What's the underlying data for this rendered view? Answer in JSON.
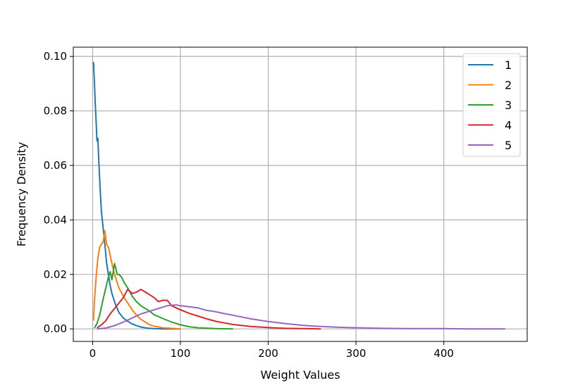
{
  "chart_data": {
    "type": "line",
    "title": "",
    "xlabel": "Weight Values",
    "ylabel": "Frequency Density",
    "xlim": [
      -22,
      495
    ],
    "ylim": [
      -0.0046,
      0.1034
    ],
    "xticks": [
      0,
      100,
      200,
      300,
      400
    ],
    "xtick_labels": [
      "0",
      "100",
      "200",
      "300",
      "400"
    ],
    "yticks": [
      0.0,
      0.02,
      0.04,
      0.06,
      0.08,
      0.1
    ],
    "ytick_labels": [
      "0.00",
      "0.02",
      "0.04",
      "0.06",
      "0.08",
      "0.10"
    ],
    "grid": true,
    "legend_position": "top-right",
    "series": [
      {
        "name": "1",
        "color": "#1f77b4",
        "x": [
          1,
          2,
          3,
          4,
          5,
          6,
          7,
          8,
          9,
          10,
          12,
          14,
          16,
          18,
          20,
          22,
          24,
          26,
          28,
          30,
          35,
          40,
          45,
          50,
          55,
          60,
          65,
          70,
          80,
          90,
          100
        ],
        "y": [
          0.098,
          0.091,
          0.083,
          0.076,
          0.069,
          0.07,
          0.062,
          0.055,
          0.049,
          0.043,
          0.037,
          0.031,
          0.024,
          0.02,
          0.016,
          0.013,
          0.011,
          0.009,
          0.0075,
          0.006,
          0.004,
          0.0028,
          0.0018,
          0.0012,
          0.0007,
          0.0004,
          0.0002,
          0.0001,
          0.0,
          0.0,
          0.0
        ]
      },
      {
        "name": "2",
        "color": "#ff7f0e",
        "x": [
          1,
          2,
          4,
          6,
          8,
          10,
          12,
          14,
          16,
          18,
          20,
          22,
          25,
          28,
          30,
          35,
          40,
          45,
          50,
          55,
          60,
          65,
          70,
          80,
          90,
          100
        ],
        "y": [
          0.003,
          0.01,
          0.019,
          0.026,
          0.03,
          0.031,
          0.032,
          0.036,
          0.031,
          0.03,
          0.027,
          0.024,
          0.02,
          0.017,
          0.015,
          0.012,
          0.0095,
          0.007,
          0.005,
          0.0035,
          0.0025,
          0.0015,
          0.001,
          0.0004,
          0.0002,
          0.0
        ]
      },
      {
        "name": "3",
        "color": "#2ca02c",
        "x": [
          2,
          5,
          8,
          10,
          12,
          15,
          18,
          20,
          22,
          25,
          28,
          30,
          33,
          36,
          40,
          45,
          50,
          55,
          60,
          65,
          70,
          80,
          90,
          100,
          110,
          120,
          140,
          160
        ],
        "y": [
          0.0003,
          0.002,
          0.005,
          0.008,
          0.011,
          0.015,
          0.019,
          0.021,
          0.018,
          0.024,
          0.02,
          0.02,
          0.019,
          0.017,
          0.015,
          0.012,
          0.01,
          0.0085,
          0.0075,
          0.0065,
          0.0052,
          0.0038,
          0.0025,
          0.0015,
          0.0008,
          0.0004,
          0.0001,
          0.0
        ]
      },
      {
        "name": "4",
        "color": "#d62728",
        "x": [
          5,
          10,
          15,
          20,
          25,
          30,
          35,
          40,
          45,
          50,
          55,
          60,
          65,
          70,
          75,
          80,
          85,
          90,
          100,
          110,
          120,
          130,
          140,
          150,
          160,
          180,
          200,
          220,
          240,
          260
        ],
        "y": [
          0.0003,
          0.0015,
          0.003,
          0.0055,
          0.0075,
          0.0095,
          0.0115,
          0.0145,
          0.013,
          0.0135,
          0.0145,
          0.0135,
          0.0125,
          0.0115,
          0.01,
          0.0105,
          0.0105,
          0.0085,
          0.007,
          0.0057,
          0.0047,
          0.0037,
          0.0028,
          0.0022,
          0.0016,
          0.0009,
          0.0005,
          0.0002,
          0.0001,
          0.0
        ]
      },
      {
        "name": "5",
        "color": "#9467bd",
        "x": [
          5,
          15,
          25,
          35,
          45,
          55,
          65,
          75,
          85,
          95,
          100,
          110,
          120,
          130,
          140,
          150,
          160,
          180,
          200,
          220,
          240,
          260,
          280,
          300,
          330,
          360,
          400,
          430,
          470
        ],
        "y": [
          0.0,
          0.0003,
          0.0012,
          0.0025,
          0.004,
          0.0055,
          0.0065,
          0.0075,
          0.0085,
          0.0088,
          0.0085,
          0.0081,
          0.0077,
          0.0068,
          0.0063,
          0.0056,
          0.005,
          0.0037,
          0.0027,
          0.0019,
          0.0013,
          0.0009,
          0.0006,
          0.0004,
          0.0002,
          0.0001,
          0.0001,
          0.0,
          0.0
        ]
      }
    ]
  }
}
